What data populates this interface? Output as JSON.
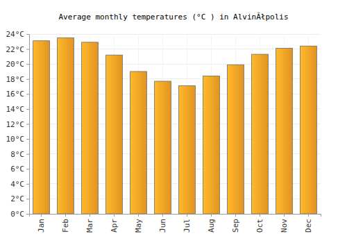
{
  "chart_data": {
    "type": "bar",
    "title": "Average monthly temperatures (°C ) in AlvinĂłpolis",
    "categories": [
      "Jan",
      "Feb",
      "Mar",
      "Apr",
      "May",
      "Jun",
      "Jul",
      "Aug",
      "Sep",
      "Oct",
      "Nov",
      "Dec"
    ],
    "values": [
      23.1,
      23.5,
      22.9,
      21.2,
      19.0,
      17.7,
      17.1,
      18.4,
      19.9,
      21.3,
      22.1,
      22.4
    ],
    "color": "#ffa726",
    "ylim": [
      0,
      24
    ],
    "yticks": [
      {
        "value": 0,
        "label": "0°C"
      },
      {
        "value": 2,
        "label": "2°C"
      },
      {
        "value": 4,
        "label": "4°C"
      },
      {
        "value": 6,
        "label": "6°C"
      },
      {
        "value": 8,
        "label": "8°C"
      },
      {
        "value": 10,
        "label": "10°C"
      },
      {
        "value": 12,
        "label": "12°C"
      },
      {
        "value": 14,
        "label": "14°C"
      },
      {
        "value": 16,
        "label": "16°C"
      },
      {
        "value": 18,
        "label": "18°C"
      },
      {
        "value": 20,
        "label": "20°C"
      },
      {
        "value": 22,
        "label": "22°C"
      },
      {
        "value": 24,
        "label": "24°C"
      }
    ],
    "grid": true
  }
}
